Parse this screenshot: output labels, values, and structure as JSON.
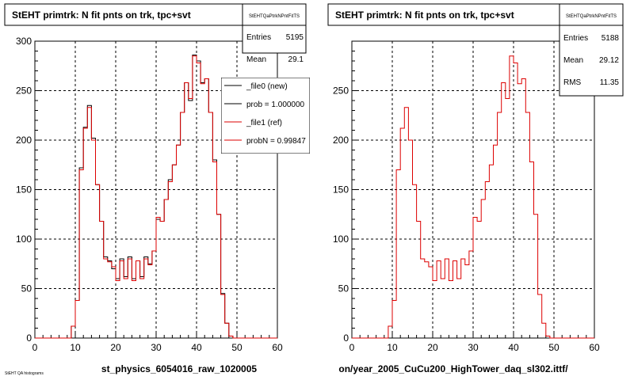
{
  "chart_data": [
    {
      "type": "histogram",
      "title": "StEHT primtrk: N fit pnts on trk, tpc+svt",
      "xlabel": "st_physics_6054016_raw_1020005",
      "xlim": [
        0,
        60
      ],
      "ylim": [
        0,
        300
      ],
      "x_ticks": [
        "0",
        "10",
        "20",
        "30",
        "40",
        "50",
        "60"
      ],
      "y_ticks": [
        "0",
        "50",
        "100",
        "150",
        "200",
        "250",
        "300"
      ],
      "grid": true,
      "bin_width": 1,
      "stats": {
        "name": "StEHTQaPtrkNPntFitTS",
        "rows": [
          {
            "label": "Entries",
            "value": "5195"
          },
          {
            "label": "Mean",
            "value": "29.1"
          }
        ]
      },
      "legend": [
        {
          "label": "_file0 (new)",
          "color": "#000000"
        },
        {
          "label": "prob = 1.000000",
          "color": "#000000"
        },
        {
          "label": "_file1 (ref)",
          "color": "#dd0000"
        },
        {
          "label": "probN = 0.99847",
          "color": "#dd0000"
        }
      ],
      "series": [
        {
          "name": "_file0 (new)",
          "color": "#000000",
          "values": [
            0,
            0,
            0,
            0,
            0,
            0,
            0,
            0,
            0,
            12,
            38,
            172,
            213,
            235,
            202,
            155,
            118,
            82,
            78,
            70,
            60,
            80,
            62,
            82,
            60,
            78,
            62,
            82,
            75,
            88,
            120,
            118,
            140,
            160,
            175,
            195,
            228,
            258,
            240,
            286,
            280,
            258,
            262,
            228,
            180,
            125,
            45,
            15,
            2,
            0,
            0,
            0,
            0,
            0,
            0,
            0,
            0,
            0,
            0,
            0
          ]
        },
        {
          "name": "_file1 (ref)",
          "color": "#dd0000",
          "values": [
            0,
            0,
            0,
            0,
            0,
            0,
            0,
            0,
            0,
            12,
            38,
            170,
            212,
            233,
            200,
            155,
            118,
            80,
            77,
            72,
            58,
            78,
            60,
            80,
            58,
            78,
            60,
            80,
            74,
            88,
            122,
            118,
            140,
            158,
            175,
            195,
            228,
            258,
            242,
            285,
            278,
            257,
            262,
            228,
            178,
            125,
            44,
            15,
            2,
            0,
            0,
            0,
            0,
            0,
            0,
            0,
            0,
            0,
            0,
            0
          ]
        }
      ]
    },
    {
      "type": "histogram",
      "title": "StEHT primtrk: N fit pnts on trk, tpc+svt",
      "xlabel": "on/year_2005_CuCu200_HighTower_daq_sl302.ittf/",
      "xlim": [
        0,
        60
      ],
      "ylim": [
        0,
        300
      ],
      "x_ticks": [
        "0",
        "10",
        "20",
        "30",
        "40",
        "50",
        "60"
      ],
      "y_ticks": [
        "0",
        "50",
        "100",
        "150",
        "200",
        "250"
      ],
      "grid": true,
      "bin_width": 1,
      "stats": {
        "name": "StEHTQaPtrkNPntFitTS",
        "rows": [
          {
            "label": "Entries",
            "value": "5188"
          },
          {
            "label": "Mean",
            "value": "29.12"
          },
          {
            "label": "RMS",
            "value": "11.35"
          }
        ]
      },
      "series": [
        {
          "color": "#dd0000",
          "values": [
            0,
            0,
            0,
            0,
            0,
            0,
            0,
            0,
            0,
            12,
            38,
            170,
            212,
            233,
            200,
            155,
            118,
            80,
            77,
            72,
            58,
            78,
            60,
            80,
            58,
            78,
            60,
            80,
            74,
            88,
            122,
            118,
            140,
            158,
            175,
            195,
            228,
            258,
            242,
            285,
            278,
            257,
            262,
            228,
            178,
            125,
            44,
            15,
            2,
            0,
            0,
            0,
            0,
            0,
            0,
            0,
            0,
            0,
            0,
            0
          ]
        }
      ]
    }
  ],
  "footer_text": "StEHT QA histograms"
}
